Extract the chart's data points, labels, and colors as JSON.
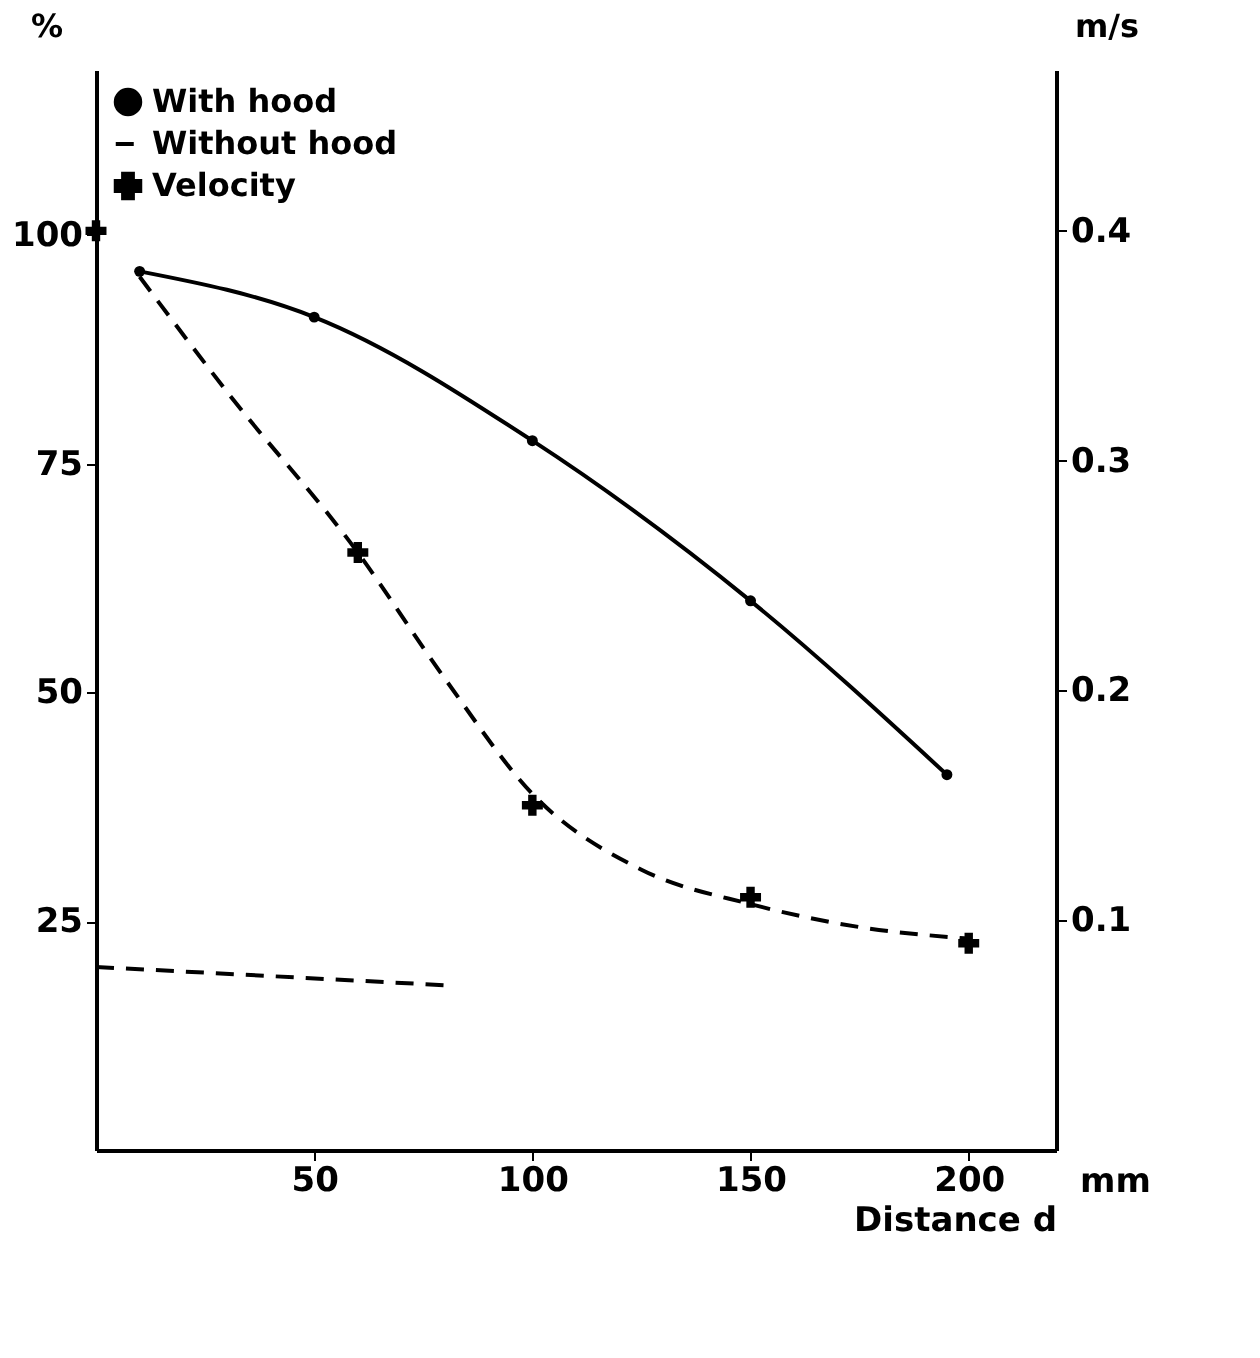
{
  "chart_data": {
    "type": "line",
    "xlabel": "Distance d",
    "ylabel": "%",
    "y2label": "m/s",
    "annotations": [
      "mm"
    ],
    "xlim": [
      0,
      220
    ],
    "xticks": [
      50,
      100,
      150,
      200
    ],
    "ylim": [
      0,
      118
    ],
    "yticks": [
      25,
      50,
      75,
      100
    ],
    "y2lim": [
      0,
      0.47
    ],
    "y2ticks": [
      0.1,
      0.2,
      0.3,
      0.4
    ],
    "grid": false,
    "legend": "top left",
    "series": [
      {
        "name": "With hood",
        "color": "#000000",
        "marker": "circle",
        "line_style": "solid",
        "x": [
          10,
          50,
          100,
          150,
          195
        ],
        "values": [
          96,
          91,
          77.5,
          60,
          41
        ]
      },
      {
        "name": "Without hood",
        "color": "#000000",
        "type": "line",
        "marker": "none",
        "line_style": "dashed",
        "x": [
          0,
          80
        ],
        "values": [
          20,
          18
        ]
      },
      {
        "name": "Velocity",
        "color": "#000000",
        "type": "scatter",
        "marker": "cross",
        "axis": "y2",
        "x": [
          0,
          60,
          100,
          150,
          200
        ],
        "values": [
          0.4,
          0.26,
          0.15,
          0.11,
          0.09
        ]
      },
      {
        "color": "#000000",
        "type": "line",
        "marker": "none",
        "line_style": "dashed",
        "axis": "y2",
        "x": [
          10,
          30,
          60,
          80,
          100,
          125,
          150,
          175,
          200
        ],
        "values": [
          0.38,
          0.33,
          0.26,
          0.205,
          0.155,
          0.122,
          0.107,
          0.097,
          0.092
        ]
      }
    ]
  }
}
